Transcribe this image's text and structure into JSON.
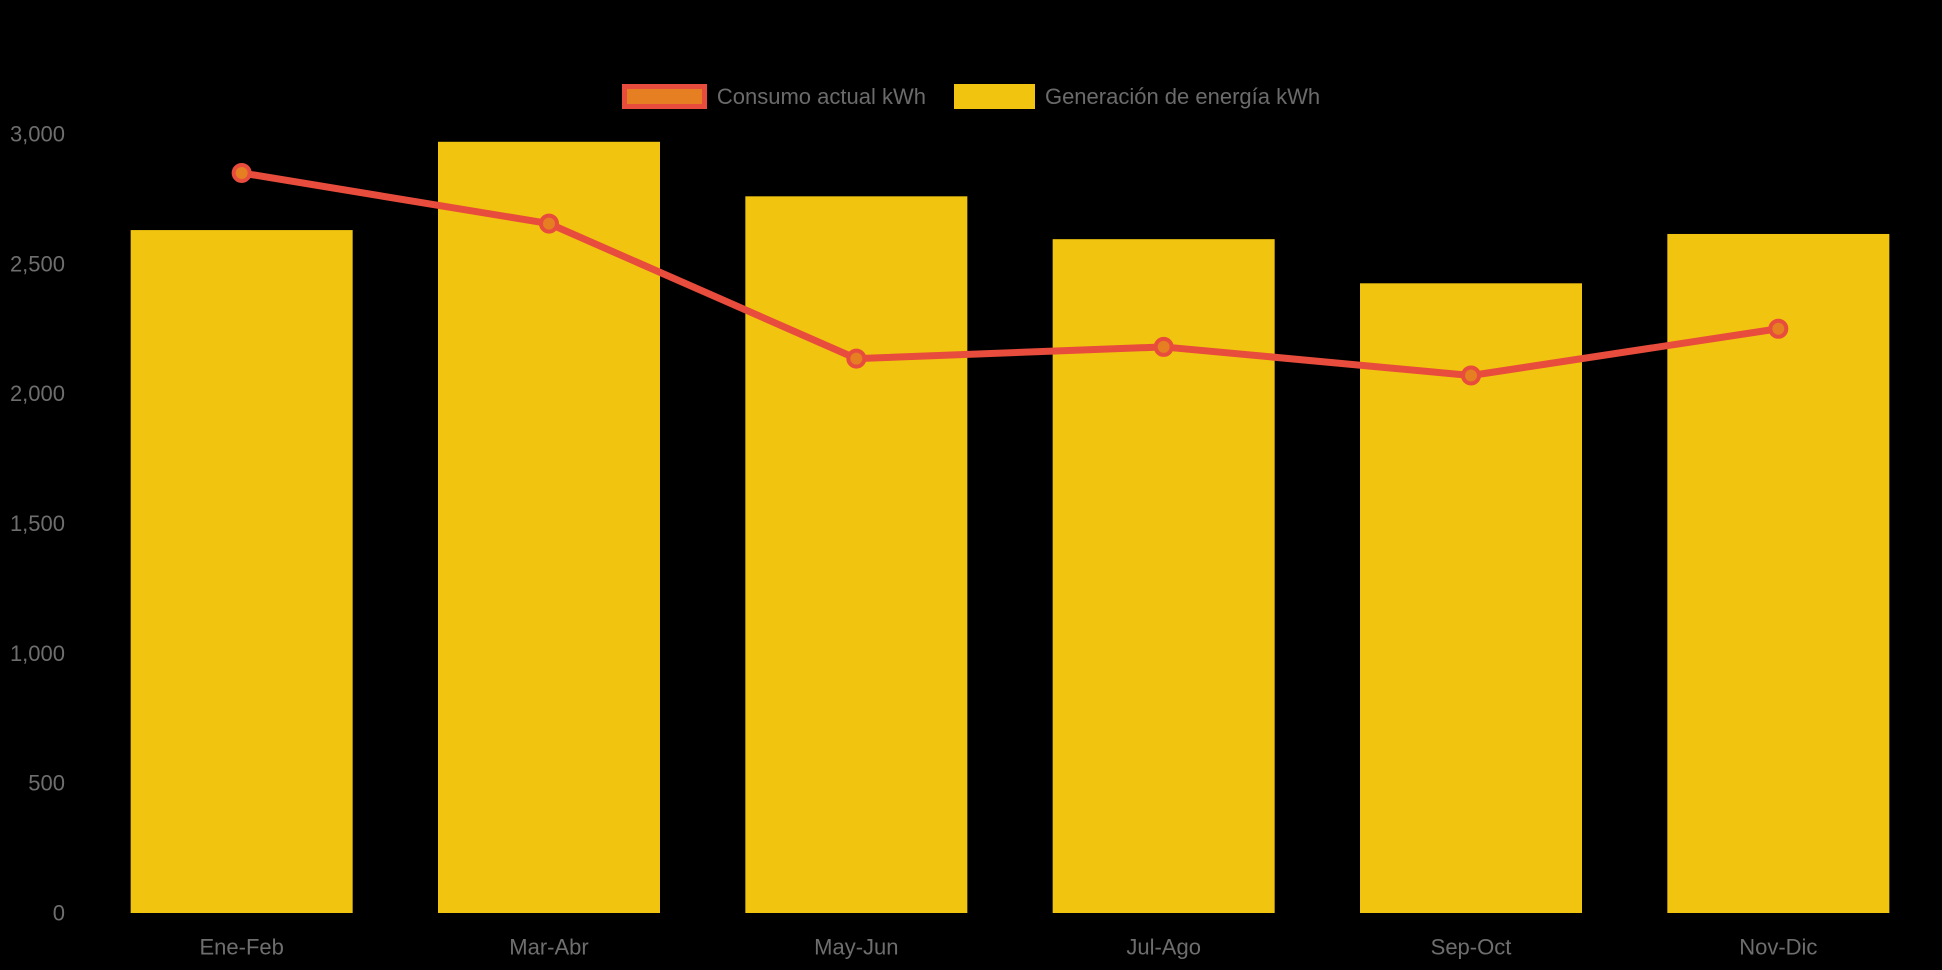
{
  "chart_data": {
    "type": "bar",
    "subtype": "bar-line-combo",
    "title": "",
    "xlabel": "",
    "ylabel": "",
    "categories": [
      "Ene-Feb",
      "Mar-Abr",
      "May-Jun",
      "Jul-Ago",
      "Sep-Oct",
      "Nov-Dic"
    ],
    "series": [
      {
        "name": "Consumo actual kWh",
        "type": "line",
        "values": [
          2850,
          2655,
          2135,
          2180,
          2070,
          2250
        ]
      },
      {
        "name": "Generación de energía kWh",
        "type": "bar",
        "values": [
          2630,
          2970,
          2760,
          2595,
          2425,
          2615
        ]
      }
    ],
    "ylim": [
      0,
      3000
    ],
    "y_ticks": [
      {
        "value": 0,
        "label": "0"
      },
      {
        "value": 500,
        "label": "500"
      },
      {
        "value": 1000,
        "label": "1,000"
      },
      {
        "value": 1500,
        "label": "1,500"
      },
      {
        "value": 2000,
        "label": "2,000"
      },
      {
        "value": 2500,
        "label": "2,500"
      },
      {
        "value": 3000,
        "label": "3,000"
      }
    ],
    "grid": false,
    "legend_position": "top-center",
    "colors": {
      "background": "#000000",
      "bar_fill": "#F1C40F",
      "line_stroke": "#E74C3C",
      "marker_fill": "#E67E22",
      "marker_stroke": "#E74C3C",
      "legend_swatch_line_fill": "#E67E22",
      "legend_swatch_line_border": "#E74C3C",
      "legend_swatch_bar_fill": "#F1C40F",
      "text": "#6b6b6b",
      "axis_text": "#6e6e6e"
    }
  }
}
